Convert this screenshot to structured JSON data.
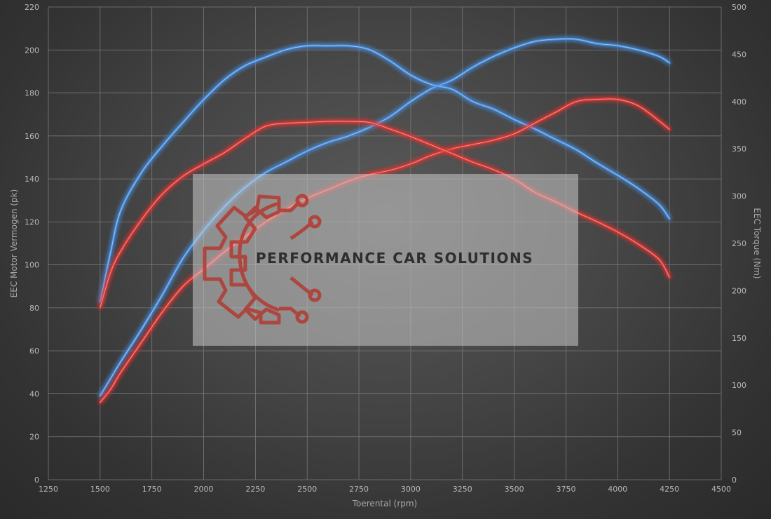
{
  "chart_data": {
    "type": "line",
    "xlabel": "Toerental (rpm)",
    "ylabel_left": "EEC Motor Vermogen (pk)",
    "ylabel_right": "EEC Torque (Nm)",
    "xlim": [
      1250,
      4500
    ],
    "ylim_left": [
      0,
      220
    ],
    "ylim_right": [
      0,
      500
    ],
    "x_ticks": [
      1250,
      1500,
      1750,
      2000,
      2250,
      2500,
      2750,
      3000,
      3250,
      3500,
      3750,
      4000,
      4250,
      4500
    ],
    "y_ticks_left": [
      0,
      20,
      40,
      60,
      80,
      100,
      120,
      140,
      160,
      180,
      200,
      220
    ],
    "y_ticks_right": [
      0,
      50,
      100,
      150,
      200,
      250,
      300,
      350,
      400,
      450,
      500
    ],
    "grid": true,
    "series": [
      {
        "axis": "left",
        "color": "#4a90e2",
        "x": [
          1500,
          1550,
          1600,
          1700,
          1800,
          1900,
          2000,
          2100,
          2200,
          2300,
          2400,
          2500,
          2600,
          2700,
          2800,
          2900,
          3000,
          3100,
          3200,
          3300,
          3400,
          3500,
          3600,
          3700,
          3800,
          3900,
          4000,
          4100,
          4200,
          4250
        ],
        "values": [
          39,
          47,
          55,
          70,
          86,
          103,
          116,
          127,
          136,
          143,
          148,
          153,
          157,
          160,
          164,
          169,
          176,
          182,
          186,
          192,
          197,
          201,
          204,
          205,
          205,
          203,
          202,
          200,
          197,
          194
        ]
      },
      {
        "axis": "right",
        "color": "#4a90e2",
        "x": [
          1500,
          1550,
          1600,
          1700,
          1800,
          1900,
          2000,
          2100,
          2200,
          2300,
          2400,
          2500,
          2600,
          2700,
          2800,
          2900,
          3000,
          3100,
          3200,
          3300,
          3400,
          3500,
          3600,
          3700,
          3800,
          3900,
          4000,
          4100,
          4200,
          4250
        ],
        "values": [
          188,
          240,
          285,
          325,
          353,
          378,
          402,
          423,
          438,
          447,
          455,
          459,
          459,
          459,
          455,
          443,
          428,
          418,
          413,
          400,
          392,
          381,
          371,
          360,
          349,
          335,
          322,
          308,
          291,
          276
        ]
      },
      {
        "axis": "left",
        "color": "#e53935",
        "x": [
          1500,
          1550,
          1600,
          1700,
          1800,
          1900,
          2000,
          2100,
          2200,
          2300,
          2400,
          2500,
          2600,
          2700,
          2800,
          2900,
          3000,
          3100,
          3200,
          3300,
          3400,
          3500,
          3600,
          3700,
          3800,
          3900,
          4000,
          4100,
          4200,
          4250
        ],
        "values": [
          36,
          42,
          50,
          64,
          78,
          90,
          98,
          106,
          113,
          120,
          126,
          131,
          135,
          139,
          142,
          144,
          147,
          151,
          154,
          156,
          158,
          161,
          166,
          171,
          176,
          177,
          177,
          174,
          167,
          163
        ]
      },
      {
        "axis": "right",
        "color": "#e53935",
        "x": [
          1500,
          1550,
          1600,
          1700,
          1800,
          1900,
          2000,
          2100,
          2200,
          2300,
          2400,
          2500,
          2600,
          2700,
          2800,
          2900,
          3000,
          3100,
          3200,
          3300,
          3400,
          3500,
          3600,
          3700,
          3800,
          3900,
          4000,
          4100,
          4200,
          4250
        ],
        "values": [
          182,
          219,
          242,
          275,
          302,
          321,
          334,
          346,
          361,
          374,
          377,
          378,
          379,
          379,
          378,
          371,
          363,
          354,
          345,
          336,
          328,
          318,
          304,
          294,
          283,
          273,
          262,
          249,
          233,
          214
        ]
      }
    ]
  },
  "watermark": {
    "text": "PERFORMANCE CAR SOLUTIONS",
    "logo": "gear-circuit-logo",
    "logo_color": "#c0392b"
  }
}
